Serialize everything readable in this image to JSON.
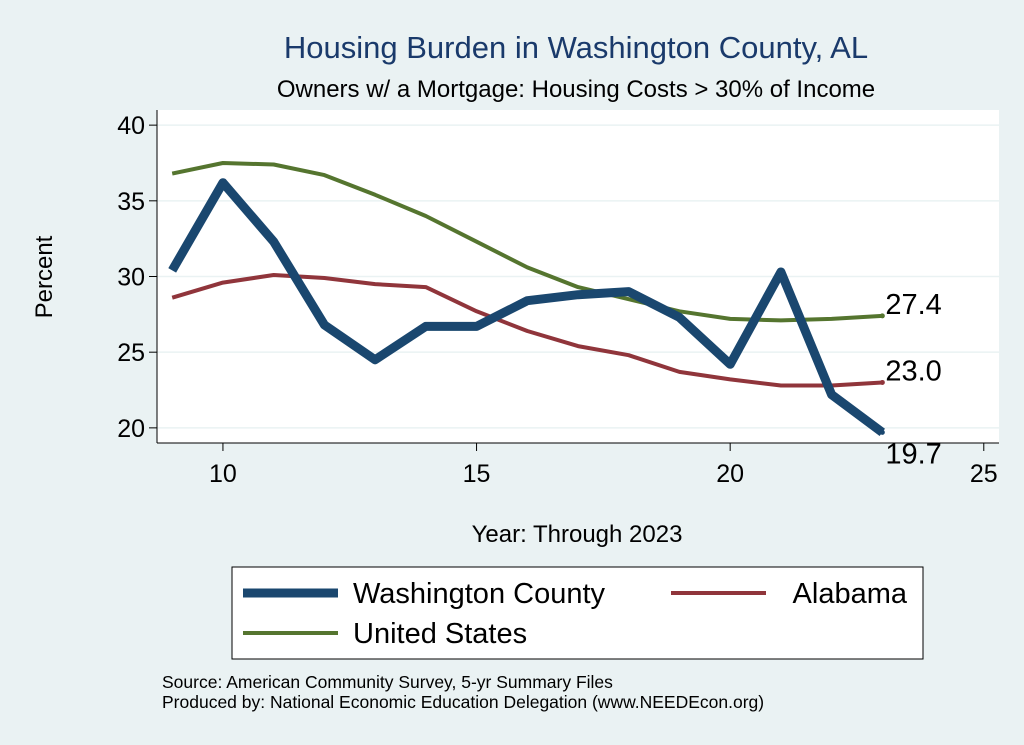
{
  "chart_data": {
    "type": "line",
    "title": "Housing Burden in Washington County, AL",
    "subtitle": "Owners w/ a Mortgage: Housing Costs > 30% of Income",
    "xlabel": "Year: Through 2023",
    "ylabel": "Percent",
    "xlim": [
      8.7,
      25.3
    ],
    "ylim": [
      19.0,
      41.0
    ],
    "xticks": [
      10,
      15,
      20,
      25
    ],
    "yticks": [
      20,
      25,
      30,
      35,
      40
    ],
    "grid": true,
    "series": [
      {
        "name": "Washington County",
        "color": "#1a476f",
        "x": [
          9,
          10,
          11,
          12,
          13,
          14,
          15,
          16,
          17,
          18,
          19,
          20,
          21,
          22,
          23
        ],
        "values": [
          30.4,
          36.2,
          32.3,
          26.8,
          24.5,
          26.7,
          26.7,
          28.4,
          28.8,
          29.0,
          27.3,
          24.2,
          30.3,
          22.2,
          19.7
        ],
        "end_label": "19.7"
      },
      {
        "name": "Alabama",
        "color": "#90353b",
        "x": [
          9,
          10,
          11,
          12,
          13,
          14,
          15,
          16,
          17,
          18,
          19,
          20,
          21,
          22,
          23
        ],
        "values": [
          28.6,
          29.6,
          30.1,
          29.9,
          29.5,
          29.3,
          27.7,
          26.4,
          25.4,
          24.8,
          23.7,
          23.2,
          22.8,
          22.8,
          23.0
        ],
        "end_label": "23.0"
      },
      {
        "name": "United States",
        "color": "#55752f",
        "x": [
          9,
          10,
          11,
          12,
          13,
          14,
          15,
          16,
          17,
          18,
          19,
          20,
          21,
          22,
          23
        ],
        "values": [
          36.8,
          37.5,
          37.4,
          36.7,
          35.4,
          34.0,
          32.3,
          30.6,
          29.3,
          28.5,
          27.7,
          27.2,
          27.1,
          27.2,
          27.4
        ],
        "end_label": "27.4"
      }
    ],
    "legend": [
      "Washington County",
      "Alabama",
      "United States"
    ],
    "notes": [
      "Source: American Community Survey, 5-yr Summary Files",
      "Produced by: National Economic Education Delegation (www.NEEDEcon.org)"
    ]
  }
}
